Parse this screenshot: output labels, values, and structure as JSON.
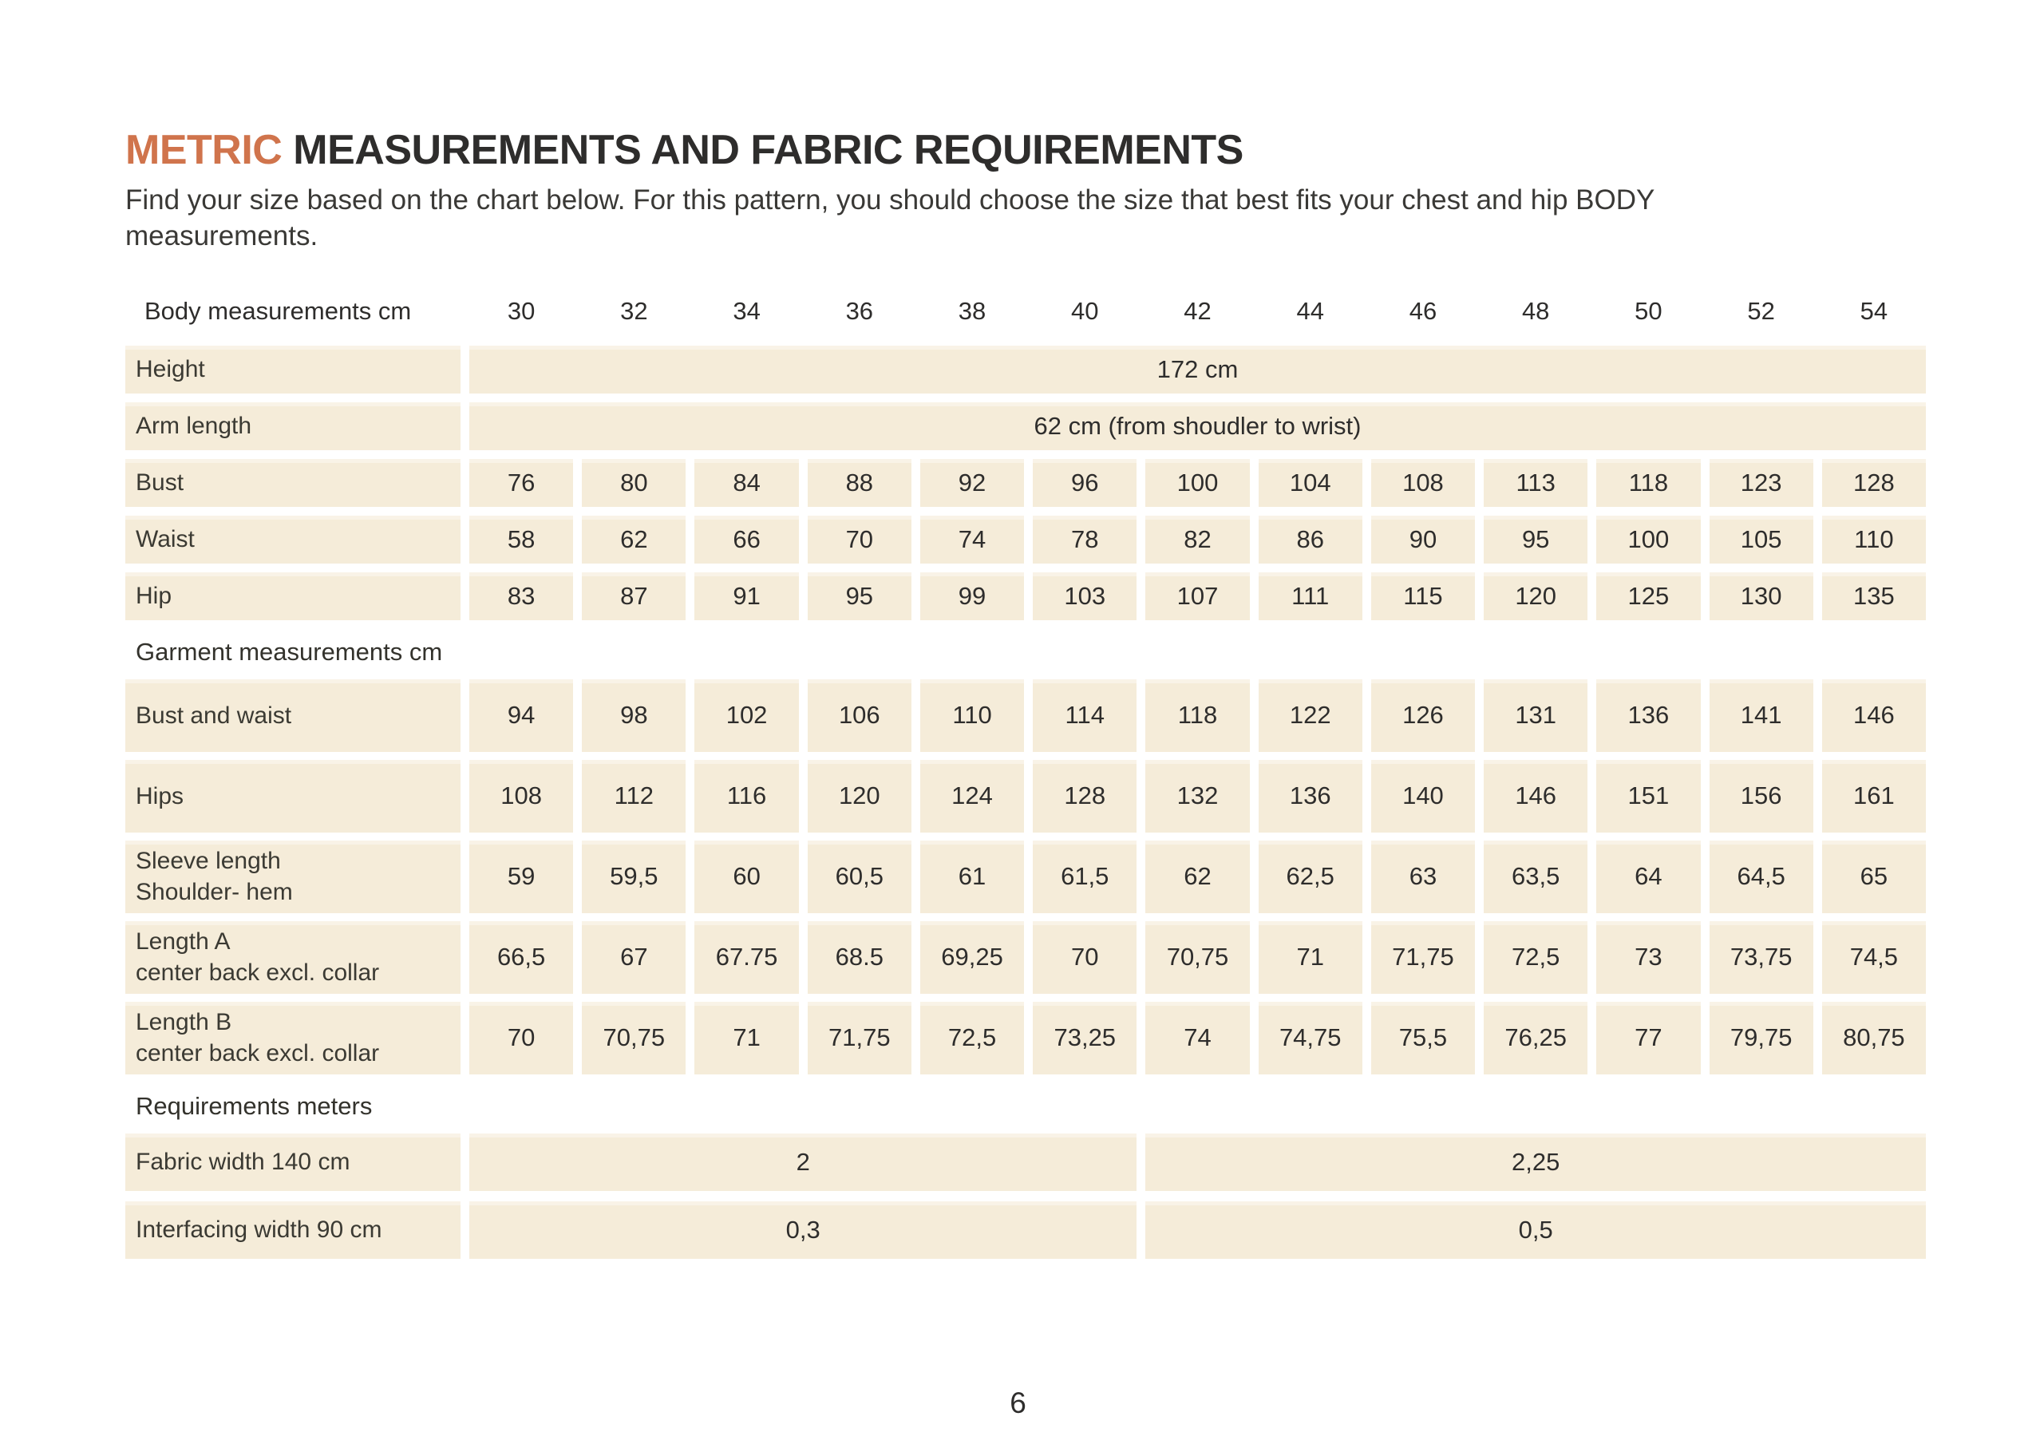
{
  "page": {
    "title": {
      "highlight": "METRIC",
      "rest": " MEASUREMENTS AND FABRIC REQUIREMENTS"
    },
    "intro_line1": "Find your size based on the chart below. For this pattern, you should choose the size that best fits your chest and hip BODY",
    "intro_line2": "measurements.",
    "page_number": "6",
    "colors": {
      "accent_orange": "#d0744c",
      "cell_beige": "#f5ecd9",
      "text_dark": "#2e2d2c"
    }
  },
  "chart_data": {
    "type": "table",
    "title": "Metric measurements and fabric requirements",
    "columns_header_label": "Body measurements cm",
    "sizes": [
      "30",
      "32",
      "34",
      "36",
      "38",
      "40",
      "42",
      "44",
      "46",
      "48",
      "50",
      "52",
      "54"
    ],
    "sections": [
      {
        "header": null,
        "rows": [
          {
            "label": "Height",
            "span_value": "172 cm"
          },
          {
            "label": "Arm length",
            "span_value": "62 cm (from shoudler to wrist)"
          },
          {
            "label": "Bust",
            "values": [
              "76",
              "80",
              "84",
              "88",
              "92",
              "96",
              "100",
              "104",
              "108",
              "113",
              "118",
              "123",
              "128"
            ]
          },
          {
            "label": "Waist",
            "values": [
              "58",
              "62",
              "66",
              "70",
              "74",
              "78",
              "82",
              "86",
              "90",
              "95",
              "100",
              "105",
              "110"
            ]
          },
          {
            "label": "Hip",
            "values": [
              "83",
              "87",
              "91",
              "95",
              "99",
              "103",
              "107",
              "111",
              "115",
              "120",
              "125",
              "130",
              "135"
            ]
          }
        ]
      },
      {
        "header": "Garment measurements cm",
        "rows": [
          {
            "label": "Bust and waist",
            "values": [
              "94",
              "98",
              "102",
              "106",
              "110",
              "114",
              "118",
              "122",
              "126",
              "131",
              "136",
              "141",
              "146"
            ]
          },
          {
            "label": "Hips",
            "values": [
              "108",
              "112",
              "116",
              "120",
              "124",
              "128",
              "132",
              "136",
              "140",
              "146",
              "151",
              "156",
              "161"
            ]
          },
          {
            "label": "Sleeve length",
            "sublabel": "Shoulder- hem",
            "values": [
              "59",
              "59,5",
              "60",
              "60,5",
              "61",
              "61,5",
              "62",
              "62,5",
              "63",
              "63,5",
              "64",
              "64,5",
              "65"
            ]
          },
          {
            "label": "Length A",
            "sublabel": "center back excl. collar",
            "values": [
              "66,5",
              "67",
              "67.75",
              "68.5",
              "69,25",
              "70",
              "70,75",
              "71",
              "71,75",
              "72,5",
              "73",
              "73,75",
              "74,5"
            ]
          },
          {
            "label": "Length B",
            "sublabel": "center back excl. collar",
            "values": [
              "70",
              "70,75",
              "71",
              "71,75",
              "72,5",
              "73,25",
              "74",
              "74,75",
              "75,5",
              "76,25",
              "77",
              "79,75",
              "80,75"
            ]
          }
        ]
      },
      {
        "header": "Requirements meters",
        "rows": [
          {
            "label": "Fabric width 140 cm",
            "split_values": [
              {
                "value": "2",
                "span": 6
              },
              {
                "value": "2,25",
                "span": 7
              }
            ]
          },
          {
            "label": "Interfacing width 90 cm",
            "split_values": [
              {
                "value": "0,3",
                "span": 6
              },
              {
                "value": "0,5",
                "span": 7
              }
            ]
          }
        ]
      }
    ]
  }
}
